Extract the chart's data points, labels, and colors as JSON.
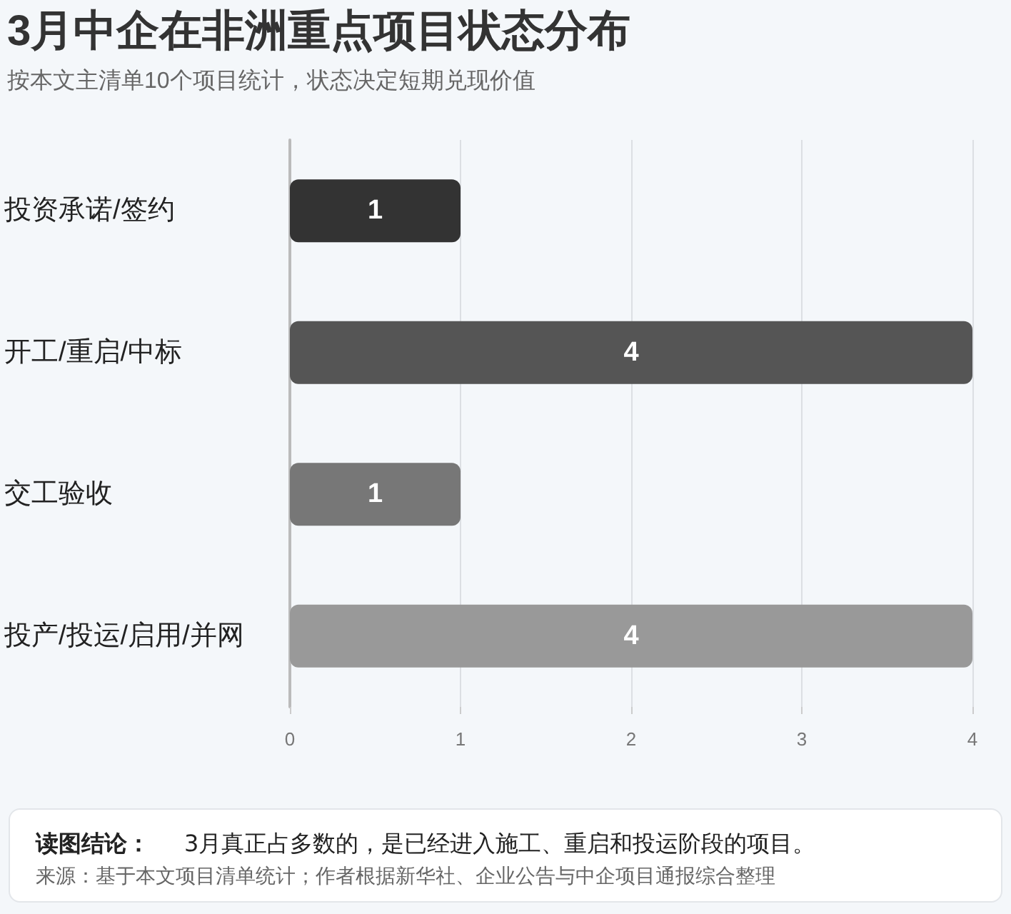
{
  "chart_data": {
    "type": "bar",
    "orientation": "horizontal",
    "title": "3月中企在非洲重点项目状态分布",
    "subtitle": "按本文主清单10个项目统计，状态决定短期兑现价值",
    "categories": [
      "投资承诺/签约",
      "开工/重启/中标",
      "交工验收",
      "投产/投运/启用/并网"
    ],
    "values": [
      1,
      4,
      1,
      4
    ],
    "colors": [
      "#333333",
      "#555555",
      "#777777",
      "#999999"
    ],
    "xlim": [
      0,
      4
    ],
    "xticks": [
      0,
      1,
      2,
      3,
      4
    ],
    "grid": "x",
    "data_labels": true,
    "annotations": [
      "读图结论：",
      "3月真正占多数的，是已经进入施工、重启和投运阶段的项目。",
      "来源：基于本文项目清单统计；作者根据新华社、企业公告与中企项目通报综合整理"
    ]
  }
}
